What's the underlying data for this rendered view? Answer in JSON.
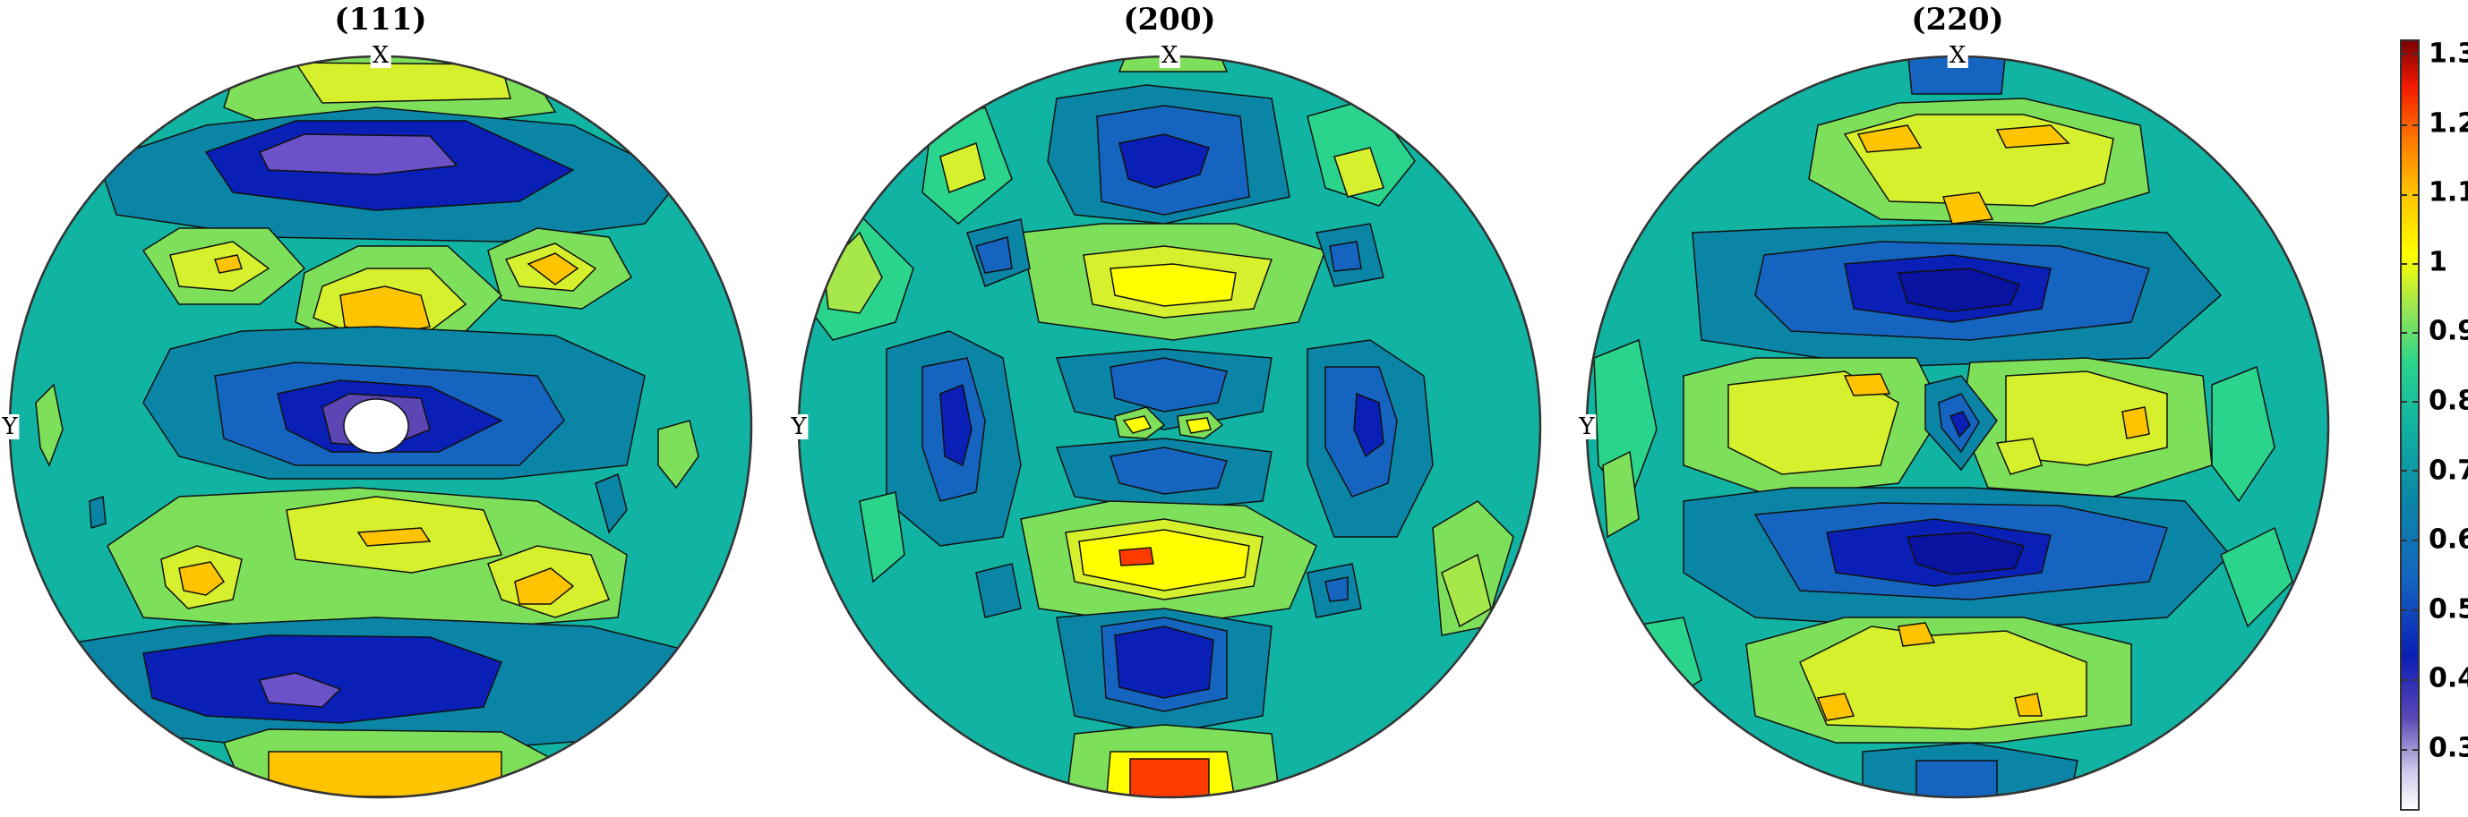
{
  "figure": {
    "poles": [
      {
        "title": "(111)",
        "x_label": "X",
        "y_label": "Y"
      },
      {
        "title": "(200)",
        "x_label": "X",
        "y_label": "Y"
      },
      {
        "title": "(220)",
        "x_label": "X",
        "y_label": "Y"
      }
    ],
    "colorbar": {
      "ticks": [
        "1.3",
        "1.2",
        "1.1",
        "1",
        "0.9",
        "0.8",
        "0.7",
        "0.6",
        "0.5",
        "0.4",
        "0.3"
      ],
      "colormap": [
        "#ffffff",
        "#4b2c9e",
        "#0a1fb5",
        "#1565c0",
        "#0b85a6",
        "#11b3a2",
        "#2ad48c",
        "#7ee05a",
        "#d7f02e",
        "#ffff00",
        "#ffc400",
        "#ff7a00",
        "#f21a00",
        "#7a0000"
      ]
    }
  }
}
